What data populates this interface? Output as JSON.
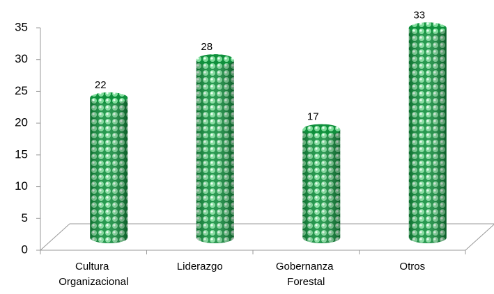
{
  "chart_data": {
    "type": "bar",
    "categories": [
      "Cultura Organizacional",
      "Liderazgo",
      "Gobernanza Forestal",
      "Otros"
    ],
    "values": [
      22,
      28,
      17,
      33
    ],
    "color": "#1a9a4a",
    "ylim": [
      0,
      35
    ],
    "yticks": [
      0,
      5,
      10,
      15,
      20,
      25,
      30,
      35
    ],
    "grid": false
  }
}
